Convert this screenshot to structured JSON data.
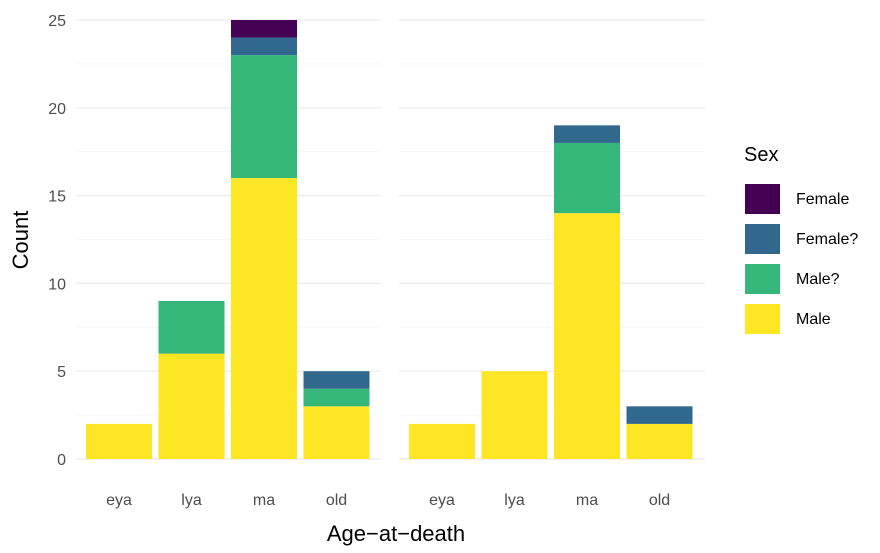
{
  "chart_data": {
    "type": "bar",
    "stacked": true,
    "xlabel": "Age−at−death",
    "ylabel": "Count",
    "ylim": [
      0,
      25
    ],
    "yticks": [
      "0",
      "5",
      "10",
      "15",
      "20",
      "25"
    ],
    "grid": true,
    "legend": {
      "title": "Sex",
      "placement": "right",
      "entries": [
        "Female",
        "Female?",
        "Male?",
        "Male"
      ]
    },
    "colors": {
      "Female": "#440154",
      "Female?": "#31688E",
      "Male?": "#35B779",
      "Male": "#FDE725"
    },
    "stack_order_bottom_to_top": [
      "Male",
      "Male?",
      "Female?",
      "Female"
    ],
    "panels": [
      {
        "title": "",
        "categories": [
          "eya",
          "lya",
          "ma",
          "old"
        ],
        "series": [
          {
            "name": "Male",
            "values": [
              2,
              6,
              16,
              3
            ]
          },
          {
            "name": "Male?",
            "values": [
              0,
              3,
              7,
              1
            ]
          },
          {
            "name": "Female?",
            "values": [
              0,
              0,
              1,
              1
            ]
          },
          {
            "name": "Female",
            "values": [
              0,
              0,
              1,
              0
            ]
          }
        ]
      },
      {
        "title": "",
        "categories": [
          "eya",
          "lya",
          "ma",
          "old"
        ],
        "series": [
          {
            "name": "Male",
            "values": [
              2,
              5,
              14,
              2
            ]
          },
          {
            "name": "Male?",
            "values": [
              0,
              0,
              4,
              0
            ]
          },
          {
            "name": "Female?",
            "values": [
              0,
              0,
              1,
              1
            ]
          },
          {
            "name": "Female",
            "values": [
              0,
              0,
              0,
              0
            ]
          }
        ]
      }
    ]
  }
}
